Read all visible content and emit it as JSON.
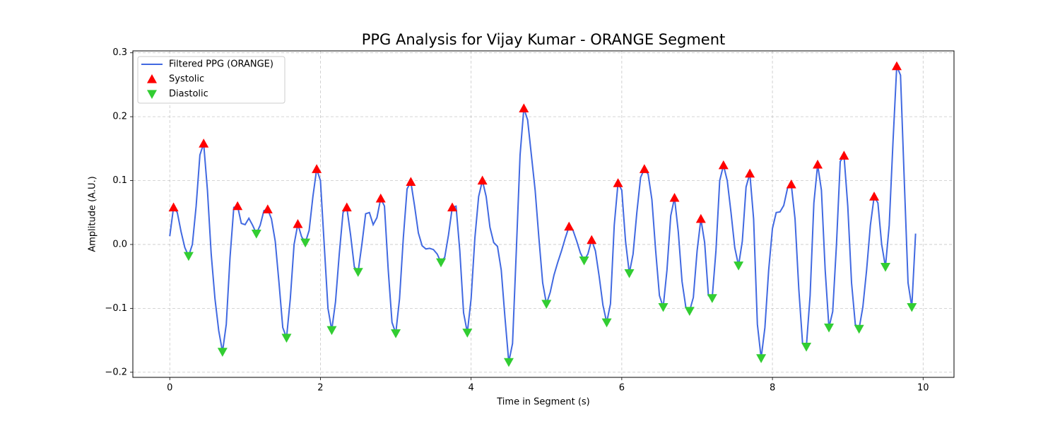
{
  "chart_data": {
    "type": "line",
    "title": "PPG Analysis for Vijay Kumar - ORANGE Segment",
    "x_label": "Time in Segment (s)",
    "y_label": "Amplitude (A.U.)",
    "xlim": [
      -0.49,
      10.41
    ],
    "ylim": [
      -0.208,
      0.303
    ],
    "xticks": [
      0,
      2,
      4,
      6,
      8,
      10
    ],
    "yticks": [
      {
        "value": -0.2,
        "label": "−0.2"
      },
      {
        "value": -0.1,
        "label": "−0.1"
      },
      {
        "value": 0,
        "label": "0.0"
      },
      0.1,
      0.2,
      0.3
    ],
    "grid": true,
    "legend": "upper left",
    "series": [
      {
        "name": "Filtered PPG (ORANGE)",
        "type": "line",
        "color": "#4169e1",
        "x": [
          0,
          0.05,
          0.1,
          0.15,
          0.2,
          0.25,
          0.3,
          0.35,
          0.4,
          0.45,
          0.5,
          0.55,
          0.6,
          0.65,
          0.7,
          0.75,
          0.8,
          0.85,
          0.9,
          0.95,
          1.0,
          1.05,
          1.1,
          1.15,
          1.2,
          1.25,
          1.3,
          1.35,
          1.4,
          1.45,
          1.5,
          1.55,
          1.6,
          1.65,
          1.7,
          1.75,
          1.8,
          1.85,
          1.9,
          1.95,
          2.0,
          2.05,
          2.1,
          2.15,
          2.2,
          2.25,
          2.3,
          2.35,
          2.4,
          2.45,
          2.5,
          2.55,
          2.6,
          2.65,
          2.7,
          2.75,
          2.8,
          2.85,
          2.9,
          2.95,
          3.0,
          3.05,
          3.1,
          3.15,
          3.2,
          3.25,
          3.3,
          3.35,
          3.4,
          3.45,
          3.5,
          3.55,
          3.6,
          3.65,
          3.7,
          3.75,
          3.8,
          3.85,
          3.9,
          3.95,
          4.0,
          4.05,
          4.1,
          4.15,
          4.2,
          4.25,
          4.3,
          4.35,
          4.4,
          4.45,
          4.5,
          4.55,
          4.6,
          4.65,
          4.7,
          4.75,
          4.8,
          4.85,
          4.9,
          4.95,
          5.0,
          5.05,
          5.1,
          5.15,
          5.2,
          5.25,
          5.3,
          5.35,
          5.4,
          5.45,
          5.5,
          5.55,
          5.6,
          5.65,
          5.7,
          5.75,
          5.8,
          5.85,
          5.9,
          5.95,
          6.0,
          6.05,
          6.1,
          6.15,
          6.2,
          6.25,
          6.3,
          6.35,
          6.4,
          6.45,
          6.5,
          6.55,
          6.6,
          6.65,
          6.7,
          6.75,
          6.8,
          6.85,
          6.9,
          6.95,
          7.0,
          7.05,
          7.1,
          7.15,
          7.2,
          7.25,
          7.3,
          7.35,
          7.4,
          7.45,
          7.5,
          7.55,
          7.6,
          7.65,
          7.7,
          7.75,
          7.8,
          7.85,
          7.9,
          7.95,
          8.0,
          8.05,
          8.1,
          8.15,
          8.2,
          8.25,
          8.3,
          8.35,
          8.4,
          8.45,
          8.5,
          8.55,
          8.6,
          8.65,
          8.7,
          8.75,
          8.8,
          8.85,
          8.9,
          8.95,
          9.0,
          9.05,
          9.1,
          9.15,
          9.2,
          9.25,
          9.3,
          9.35,
          9.4,
          9.45,
          9.5,
          9.55,
          9.6,
          9.65,
          9.7,
          9.75,
          9.8,
          9.85,
          9.9
        ],
        "values": [
          0.013,
          0.058,
          0.05,
          0.02,
          -0.005,
          -0.018,
          0.0,
          0.06,
          0.14,
          0.158,
          0.085,
          -0.015,
          -0.085,
          -0.135,
          -0.168,
          -0.125,
          -0.02,
          0.058,
          0.06,
          0.033,
          0.031,
          0.041,
          0.03,
          0.017,
          0.03,
          0.053,
          0.055,
          0.04,
          0.005,
          -0.06,
          -0.13,
          -0.146,
          -0.085,
          0.0,
          0.032,
          0.012,
          0.003,
          0.022,
          0.075,
          0.118,
          0.1,
          0.0,
          -0.1,
          -0.134,
          -0.09,
          -0.015,
          0.05,
          0.058,
          0.015,
          -0.035,
          -0.043,
          0.0,
          0.048,
          0.05,
          0.031,
          0.042,
          0.072,
          0.06,
          -0.04,
          -0.122,
          -0.139,
          -0.085,
          0.01,
          0.087,
          0.098,
          0.06,
          0.018,
          -0.002,
          -0.007,
          -0.006,
          -0.008,
          -0.015,
          -0.028,
          -0.02,
          0.015,
          0.058,
          0.06,
          -0.01,
          -0.107,
          -0.138,
          -0.085,
          0.01,
          0.075,
          0.1,
          0.075,
          0.027,
          0.003,
          -0.003,
          -0.04,
          -0.115,
          -0.184,
          -0.155,
          -0.01,
          0.14,
          0.213,
          0.195,
          0.14,
          0.085,
          0.01,
          -0.06,
          -0.093,
          -0.075,
          -0.048,
          -0.028,
          -0.01,
          0.01,
          0.028,
          0.023,
          0.006,
          -0.013,
          -0.025,
          -0.015,
          0.007,
          -0.01,
          -0.05,
          -0.095,
          -0.122,
          -0.093,
          0.03,
          0.096,
          0.085,
          0.005,
          -0.045,
          -0.015,
          0.05,
          0.105,
          0.118,
          0.11,
          0.07,
          -0.01,
          -0.08,
          -0.098,
          -0.04,
          0.045,
          0.073,
          0.02,
          -0.058,
          -0.098,
          -0.104,
          -0.083,
          -0.01,
          0.04,
          0.003,
          -0.08,
          -0.084,
          -0.01,
          0.1,
          0.124,
          0.1,
          0.05,
          -0.005,
          -0.033,
          0.005,
          0.09,
          0.111,
          0.04,
          -0.125,
          -0.178,
          -0.13,
          -0.04,
          0.025,
          0.05,
          0.051,
          0.061,
          0.088,
          0.094,
          0.04,
          -0.07,
          -0.155,
          -0.16,
          -0.08,
          0.065,
          0.125,
          0.085,
          -0.04,
          -0.13,
          -0.105,
          0.0,
          0.13,
          0.139,
          0.06,
          -0.06,
          -0.125,
          -0.132,
          -0.098,
          -0.04,
          0.03,
          0.075,
          0.065,
          0.0,
          -0.035,
          0.03,
          0.16,
          0.279,
          0.265,
          0.1,
          -0.06,
          -0.098,
          0.017
        ]
      },
      {
        "name": "Systolic",
        "type": "scatter",
        "marker": "^",
        "color": "#ff0000",
        "x": [
          0.05,
          0.45,
          0.9,
          1.3,
          1.7,
          1.95,
          2.35,
          2.8,
          3.2,
          3.75,
          4.15,
          4.7,
          5.3,
          5.6,
          5.95,
          6.3,
          6.7,
          7.05,
          7.35,
          7.7,
          8.25,
          8.6,
          8.95,
          9.35,
          9.65
        ],
        "values": [
          0.058,
          0.158,
          0.06,
          0.055,
          0.032,
          0.118,
          0.058,
          0.072,
          0.098,
          0.058,
          0.1,
          0.213,
          0.028,
          0.007,
          0.096,
          0.118,
          0.073,
          0.04,
          0.124,
          0.111,
          0.094,
          0.125,
          0.139,
          0.075,
          0.279
        ]
      },
      {
        "name": "Diastolic",
        "type": "scatter",
        "marker": "v",
        "color": "#32cd32",
        "x": [
          0.25,
          0.7,
          1.15,
          1.55,
          1.8,
          2.15,
          2.5,
          3.0,
          3.6,
          3.95,
          4.5,
          5.0,
          5.5,
          5.8,
          6.1,
          6.55,
          6.9,
          7.2,
          7.55,
          7.85,
          8.45,
          8.75,
          9.15,
          9.5,
          9.85
        ],
        "values": [
          -0.018,
          -0.168,
          0.017,
          -0.146,
          0.003,
          -0.134,
          -0.043,
          -0.139,
          -0.028,
          -0.138,
          -0.184,
          -0.093,
          -0.025,
          -0.122,
          -0.045,
          -0.098,
          -0.104,
          -0.084,
          -0.033,
          -0.178,
          -0.16,
          -0.13,
          -0.132,
          -0.035,
          -0.098
        ]
      }
    ]
  }
}
